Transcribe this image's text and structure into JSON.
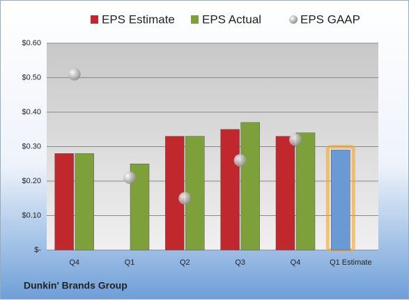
{
  "chart_data": {
    "type": "bar",
    "footer": "Dunkin' Brands Group",
    "categories": [
      "Q4",
      "Q1",
      "Q2",
      "Q3",
      "Q4",
      "Q1 Estimate"
    ],
    "series": [
      {
        "name": "EPS Estimate",
        "color": "#c0282d",
        "values": [
          0.28,
          null,
          0.33,
          0.35,
          0.33,
          0.29
        ],
        "colors": [
          "#c0282d",
          "#c0282d",
          "#c0282d",
          "#c0282d",
          "#c0282d",
          "#6a9ad6"
        ]
      },
      {
        "name": "EPS Actual",
        "color": "#7ea03a",
        "values": [
          0.28,
          0.25,
          0.33,
          0.37,
          0.34,
          null
        ]
      },
      {
        "name": "EPS GAAP",
        "color": "#a9a9a9",
        "marker": "circle",
        "values": [
          0.51,
          0.21,
          0.15,
          0.26,
          0.32,
          null
        ]
      }
    ],
    "ylim": [
      0,
      0.6
    ],
    "yticks": [
      {
        "value": 0,
        "label": "$-"
      },
      {
        "value": 0.1,
        "label": "$0.10"
      },
      {
        "value": 0.2,
        "label": "$0.20"
      },
      {
        "value": 0.3,
        "label": "$0.30"
      },
      {
        "value": 0.4,
        "label": "$0.40"
      },
      {
        "value": 0.5,
        "label": "$0.50"
      },
      {
        "value": 0.6,
        "label": "$0.60"
      }
    ],
    "grid": true
  }
}
